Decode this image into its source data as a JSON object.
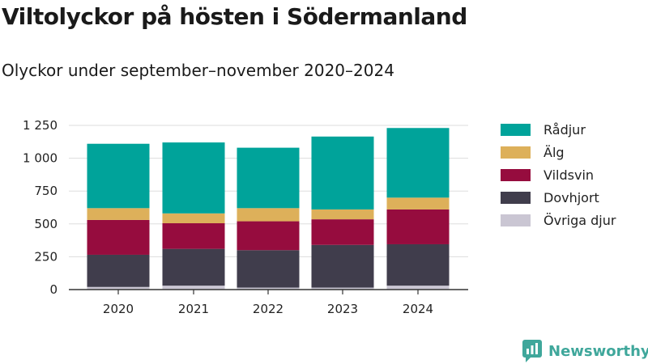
{
  "brand": {
    "name": "Newsworthy",
    "color": "#3fa79b"
  },
  "chart_data": {
    "type": "bar",
    "stacked": true,
    "title": "Viltolyckor på hösten i Södermanland",
    "subtitle": "Olyckor under september–november 2020–2024",
    "xlabel": "",
    "ylabel": "",
    "ylim": [
      0,
      1250
    ],
    "yticks": [
      0,
      250,
      500,
      750,
      1000,
      1250
    ],
    "ytick_labels": [
      "0",
      "250",
      "500",
      "750",
      "1 000",
      "1 250"
    ],
    "grid": true,
    "legend_position": "right",
    "categories": [
      "2020",
      "2021",
      "2022",
      "2023",
      "2024"
    ],
    "series": [
      {
        "name": "Övriga djur",
        "color": "#cac6d3",
        "values": [
          20,
          30,
          15,
          15,
          30
        ]
      },
      {
        "name": "Dovhjort",
        "color": "#403d4c",
        "values": [
          245,
          280,
          285,
          325,
          315
        ]
      },
      {
        "name": "Vildsvin",
        "color": "#960c3e",
        "values": [
          265,
          195,
          220,
          195,
          265
        ]
      },
      {
        "name": "Älg",
        "color": "#ddb05a",
        "values": [
          90,
          75,
          100,
          75,
          90
        ]
      },
      {
        "name": "Rådjur",
        "color": "#00a39a",
        "values": [
          490,
          540,
          460,
          555,
          530
        ]
      }
    ]
  }
}
